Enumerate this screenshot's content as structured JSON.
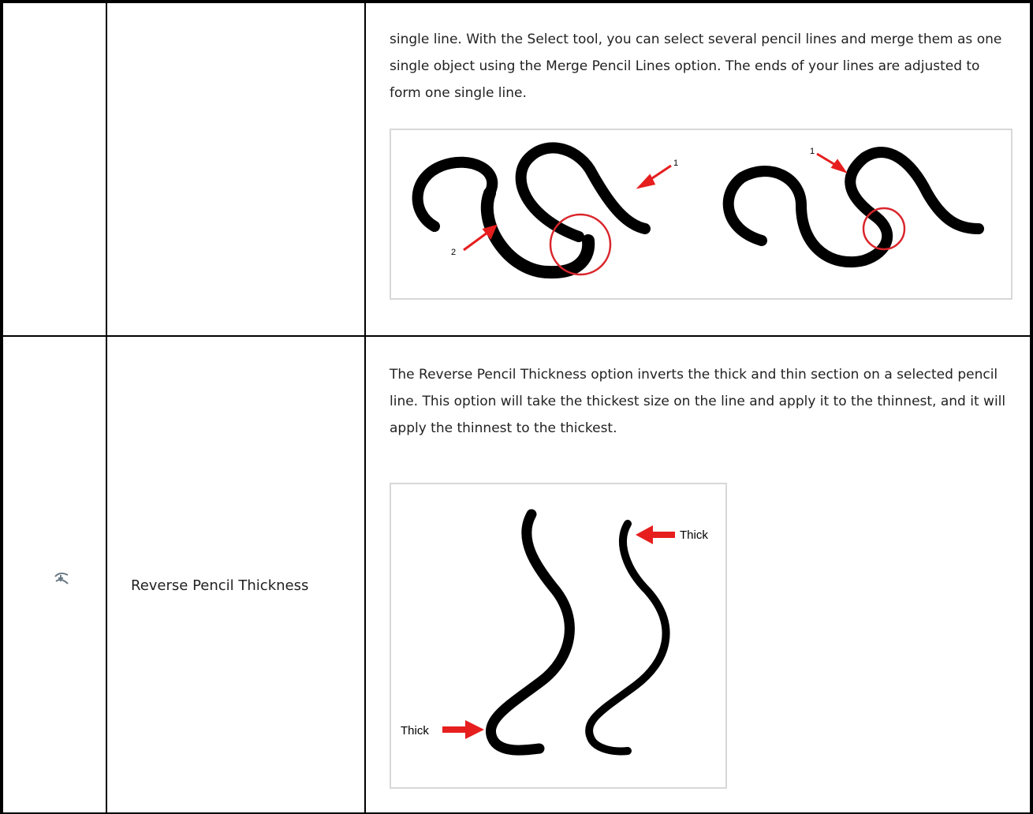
{
  "table": {
    "rows": [
      {
        "description": "single line. With the Select tool, you can select several pencil lines and merge them as one single object using the Merge Pencil Lines option. The ends of your lines are adjusted to form one single line.",
        "figure_labels": [
          "1",
          "2",
          "1"
        ]
      },
      {
        "name": "Reverse Pencil Thickness",
        "description": "The Reverse Pencil Thickness option inverts the thick and thin section on a selected pencil line. This option will take the thickest size on the line and apply it to the thinnest, and it will apply the thinnest to the thickest.",
        "figure_labels": [
          "Thick",
          "Thick"
        ]
      }
    ]
  }
}
